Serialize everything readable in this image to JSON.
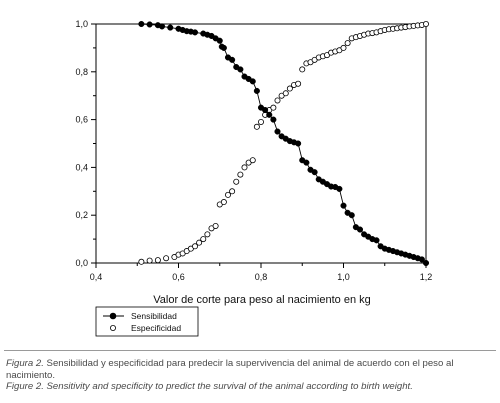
{
  "chart_data": {
    "type": "scatter",
    "xlabel": "Valor de corte para peso al nacimiento en kg",
    "ylabel": "",
    "xlim": [
      0.4,
      1.2
    ],
    "ylim": [
      0.0,
      1.0
    ],
    "xticks": [
      "0,4",
      "0,6",
      "0,8",
      "1,0",
      "1,2"
    ],
    "yticks": [
      "0,0",
      "0,2",
      "0,4",
      "0,6",
      "0,8",
      "1,0"
    ],
    "grid": false,
    "legend_position": "bottom-left",
    "series": [
      {
        "name": "Sensibilidad",
        "marker": "filled-circle",
        "connected": true,
        "points": [
          [
            0.51,
            1.0
          ],
          [
            0.53,
            0.998
          ],
          [
            0.55,
            0.995
          ],
          [
            0.56,
            0.99
          ],
          [
            0.58,
            0.985
          ],
          [
            0.6,
            0.98
          ],
          [
            0.61,
            0.975
          ],
          [
            0.62,
            0.97
          ],
          [
            0.63,
            0.968
          ],
          [
            0.64,
            0.965
          ],
          [
            0.66,
            0.96
          ],
          [
            0.67,
            0.955
          ],
          [
            0.68,
            0.95
          ],
          [
            0.69,
            0.94
          ],
          [
            0.7,
            0.93
          ],
          [
            0.705,
            0.905
          ],
          [
            0.71,
            0.9
          ],
          [
            0.72,
            0.86
          ],
          [
            0.73,
            0.85
          ],
          [
            0.74,
            0.82
          ],
          [
            0.75,
            0.81
          ],
          [
            0.76,
            0.78
          ],
          [
            0.77,
            0.77
          ],
          [
            0.78,
            0.76
          ],
          [
            0.79,
            0.72
          ],
          [
            0.8,
            0.65
          ],
          [
            0.81,
            0.64
          ],
          [
            0.82,
            0.62
          ],
          [
            0.83,
            0.6
          ],
          [
            0.84,
            0.55
          ],
          [
            0.85,
            0.53
          ],
          [
            0.86,
            0.52
          ],
          [
            0.87,
            0.51
          ],
          [
            0.88,
            0.505
          ],
          [
            0.89,
            0.5
          ],
          [
            0.9,
            0.43
          ],
          [
            0.91,
            0.42
          ],
          [
            0.92,
            0.39
          ],
          [
            0.93,
            0.38
          ],
          [
            0.94,
            0.35
          ],
          [
            0.95,
            0.34
          ],
          [
            0.96,
            0.33
          ],
          [
            0.97,
            0.32
          ],
          [
            0.98,
            0.318
          ],
          [
            0.99,
            0.31
          ],
          [
            1.0,
            0.24
          ],
          [
            1.01,
            0.21
          ],
          [
            1.02,
            0.2
          ],
          [
            1.03,
            0.15
          ],
          [
            1.04,
            0.14
          ],
          [
            1.05,
            0.12
          ],
          [
            1.06,
            0.11
          ],
          [
            1.07,
            0.1
          ],
          [
            1.08,
            0.095
          ],
          [
            1.09,
            0.07
          ],
          [
            1.1,
            0.06
          ],
          [
            1.11,
            0.055
          ],
          [
            1.12,
            0.05
          ],
          [
            1.13,
            0.045
          ],
          [
            1.14,
            0.04
          ],
          [
            1.15,
            0.035
          ],
          [
            1.16,
            0.03
          ],
          [
            1.17,
            0.025
          ],
          [
            1.18,
            0.02
          ],
          [
            1.19,
            0.015
          ],
          [
            1.2,
            0.0
          ]
        ]
      },
      {
        "name": "Especificidad",
        "marker": "open-circle",
        "connected": false,
        "points": [
          [
            0.51,
            0.005
          ],
          [
            0.53,
            0.01
          ],
          [
            0.55,
            0.012
          ],
          [
            0.57,
            0.02
          ],
          [
            0.59,
            0.025
          ],
          [
            0.6,
            0.035
          ],
          [
            0.61,
            0.04
          ],
          [
            0.62,
            0.05
          ],
          [
            0.63,
            0.06
          ],
          [
            0.64,
            0.07
          ],
          [
            0.65,
            0.085
          ],
          [
            0.66,
            0.1
          ],
          [
            0.67,
            0.12
          ],
          [
            0.68,
            0.145
          ],
          [
            0.69,
            0.155
          ],
          [
            0.7,
            0.245
          ],
          [
            0.71,
            0.255
          ],
          [
            0.72,
            0.285
          ],
          [
            0.73,
            0.3
          ],
          [
            0.74,
            0.34
          ],
          [
            0.75,
            0.37
          ],
          [
            0.76,
            0.4
          ],
          [
            0.77,
            0.42
          ],
          [
            0.78,
            0.43
          ],
          [
            0.79,
            0.57
          ],
          [
            0.8,
            0.59
          ],
          [
            0.81,
            0.62
          ],
          [
            0.82,
            0.64
          ],
          [
            0.83,
            0.65
          ],
          [
            0.84,
            0.68
          ],
          [
            0.85,
            0.7
          ],
          [
            0.86,
            0.71
          ],
          [
            0.87,
            0.73
          ],
          [
            0.88,
            0.745
          ],
          [
            0.89,
            0.75
          ],
          [
            0.9,
            0.81
          ],
          [
            0.91,
            0.835
          ],
          [
            0.92,
            0.84
          ],
          [
            0.93,
            0.85
          ],
          [
            0.94,
            0.86
          ],
          [
            0.95,
            0.865
          ],
          [
            0.96,
            0.87
          ],
          [
            0.97,
            0.88
          ],
          [
            0.98,
            0.885
          ],
          [
            0.99,
            0.89
          ],
          [
            1.0,
            0.9
          ],
          [
            1.01,
            0.92
          ],
          [
            1.02,
            0.94
          ],
          [
            1.03,
            0.945
          ],
          [
            1.04,
            0.95
          ],
          [
            1.05,
            0.955
          ],
          [
            1.06,
            0.96
          ],
          [
            1.07,
            0.962
          ],
          [
            1.08,
            0.965
          ],
          [
            1.09,
            0.97
          ],
          [
            1.1,
            0.975
          ],
          [
            1.11,
            0.978
          ],
          [
            1.12,
            0.98
          ],
          [
            1.13,
            0.982
          ],
          [
            1.14,
            0.985
          ],
          [
            1.15,
            0.987
          ],
          [
            1.16,
            0.99
          ],
          [
            1.17,
            0.992
          ],
          [
            1.18,
            0.994
          ],
          [
            1.19,
            0.996
          ],
          [
            1.2,
            1.0
          ]
        ]
      }
    ]
  },
  "caption": {
    "es_prefix": "Figura 2.",
    "es_text": " Sensibilidad y especificidad para predecir la supervivencia del animal de acuerdo con el peso al nacimiento.",
    "en_text": "Figure 2. Sensitivity and specificity to predict the survival of the animal according to birth weight."
  }
}
